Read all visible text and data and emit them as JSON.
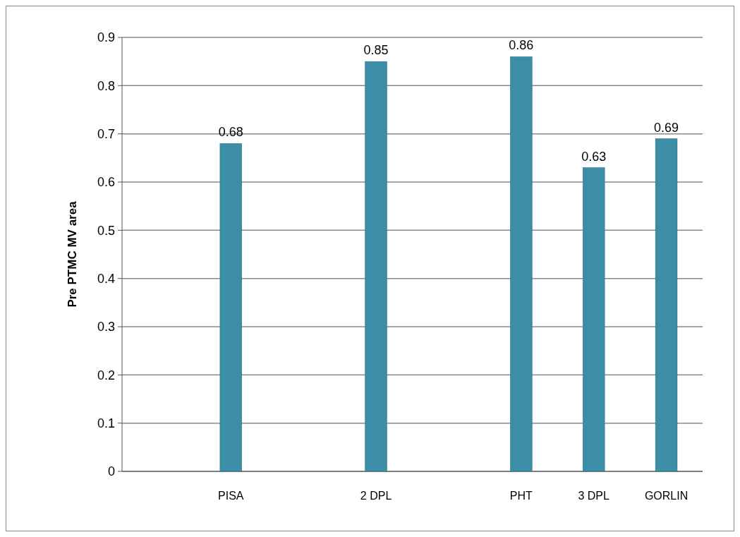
{
  "chart_data": {
    "type": "bar",
    "ylabel": "Pre PTMC MV area",
    "categories": [
      null,
      "PISA",
      null,
      "2 DPL",
      null,
      "PHT",
      "3 DPL",
      "GORLIN"
    ],
    "values": [
      null,
      0.68,
      null,
      0.85,
      null,
      0.86,
      0.63,
      0.69
    ],
    "color": "#3b8ea5",
    "ylim": [
      0,
      0.9
    ],
    "yticks": [
      0,
      0.1,
      0.2,
      0.3,
      0.4,
      0.5,
      0.6,
      0.7,
      0.8,
      0.9
    ],
    "grid": "y",
    "data_labels": true
  }
}
